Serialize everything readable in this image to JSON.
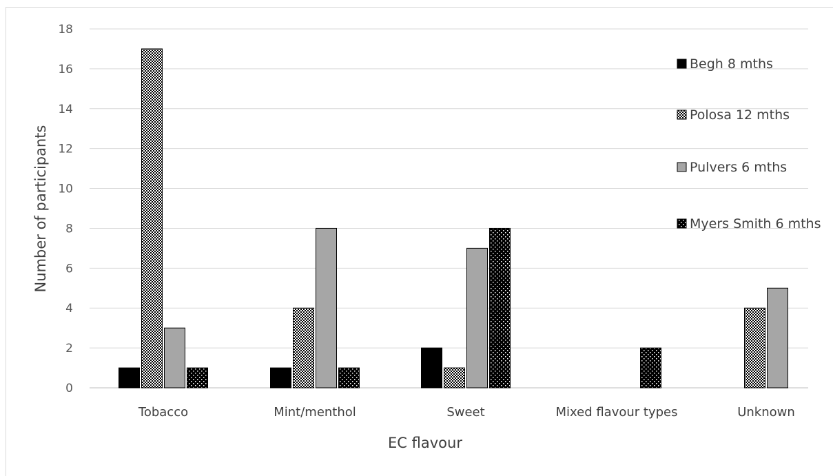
{
  "chart_data": {
    "type": "bar",
    "title": "",
    "xlabel": "EC flavour",
    "ylabel": "Number of participants",
    "ylim": [
      0,
      18
    ],
    "yticks": [
      0,
      2,
      4,
      6,
      8,
      10,
      12,
      14,
      16,
      18
    ],
    "grid": true,
    "legend_position": "right",
    "categories": [
      "Tobacco",
      "Mint/menthol",
      "Sweet",
      "Mixed flavour types",
      "Unknown"
    ],
    "series": [
      {
        "name": "Begh 8 mths",
        "values": [
          1,
          1,
          2,
          0,
          0
        ],
        "fill": "solid-black"
      },
      {
        "name": "Polosa 12 mths",
        "values": [
          17,
          4,
          1,
          0,
          4
        ],
        "fill": "fine-checker"
      },
      {
        "name": "Pulvers 6 mths",
        "values": [
          3,
          8,
          7,
          0,
          5
        ],
        "fill": "solid-gray"
      },
      {
        "name": "Myers Smith 6 mths",
        "values": [
          1,
          1,
          8,
          2,
          0
        ],
        "fill": "black-dotted"
      }
    ],
    "colors": {
      "grid": "#d9d9d9",
      "axis": "#bfbfbf",
      "black": "#000000",
      "gray": "#a6a6a6"
    }
  }
}
